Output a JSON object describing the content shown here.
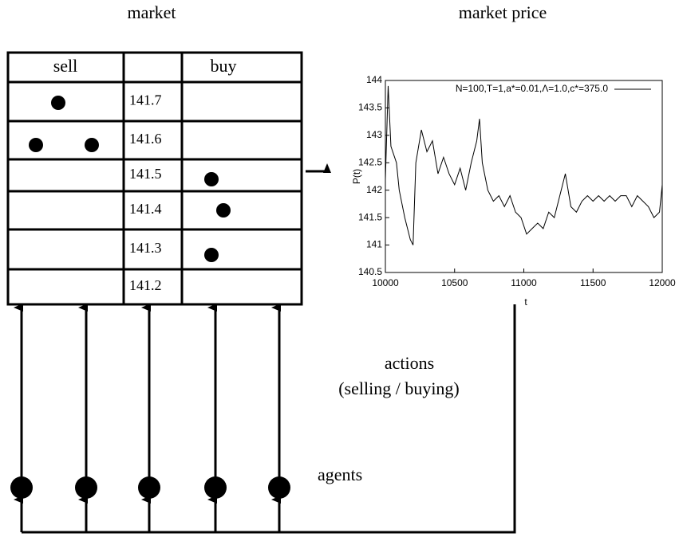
{
  "labels": {
    "market": "market",
    "market_price": "market price",
    "actions": "actions",
    "actions_sub": "(selling / buying)",
    "agents": "agents"
  },
  "order_book": {
    "sell_header": "sell",
    "buy_header": "buy",
    "prices": [
      141.7,
      141.6,
      141.5,
      141.4,
      141.3,
      141.2
    ]
  },
  "chart_data": {
    "type": "line",
    "xlabel": "t",
    "ylabel": "P(t)",
    "xlim": [
      10000,
      12000
    ],
    "xticks": [
      10000,
      10500,
      11000,
      11500,
      12000
    ],
    "ylim": [
      140.5,
      144
    ],
    "yticks": [
      140.5,
      141,
      141.5,
      142,
      142.5,
      143,
      143.5,
      144
    ],
    "x": [
      10000,
      10020,
      10040,
      10080,
      10100,
      10140,
      10180,
      10200,
      10220,
      10260,
      10300,
      10340,
      10380,
      10420,
      10460,
      10500,
      10540,
      10580,
      10620,
      10660,
      10680,
      10700,
      10740,
      10780,
      10820,
      10860,
      10900,
      10940,
      10980,
      11020,
      11060,
      11100,
      11140,
      11180,
      11220,
      11260,
      11300,
      11340,
      11380,
      11420,
      11460,
      11500,
      11540,
      11580,
      11620,
      11660,
      11700,
      11740,
      11780,
      11820,
      11860,
      11900,
      11940,
      11980,
      12000
    ],
    "series": [
      {
        "name": "N=100,T=1,a*=0.01,Λ=1.0,c*=375.0",
        "color": "#000000",
        "values": [
          142.2,
          143.9,
          142.8,
          142.5,
          142.0,
          141.5,
          141.1,
          141.0,
          142.5,
          143.1,
          142.7,
          142.9,
          142.3,
          142.6,
          142.3,
          142.1,
          142.4,
          142.0,
          142.5,
          142.9,
          143.3,
          142.5,
          142.0,
          141.8,
          141.9,
          141.7,
          141.9,
          141.6,
          141.5,
          141.2,
          141.3,
          141.4,
          141.3,
          141.6,
          141.5,
          141.9,
          142.3,
          141.7,
          141.6,
          141.8,
          141.9,
          141.8,
          141.9,
          141.8,
          141.9,
          141.8,
          141.9,
          141.9,
          141.7,
          141.9,
          141.8,
          141.7,
          141.5,
          141.6,
          142.1
        ]
      }
    ]
  }
}
